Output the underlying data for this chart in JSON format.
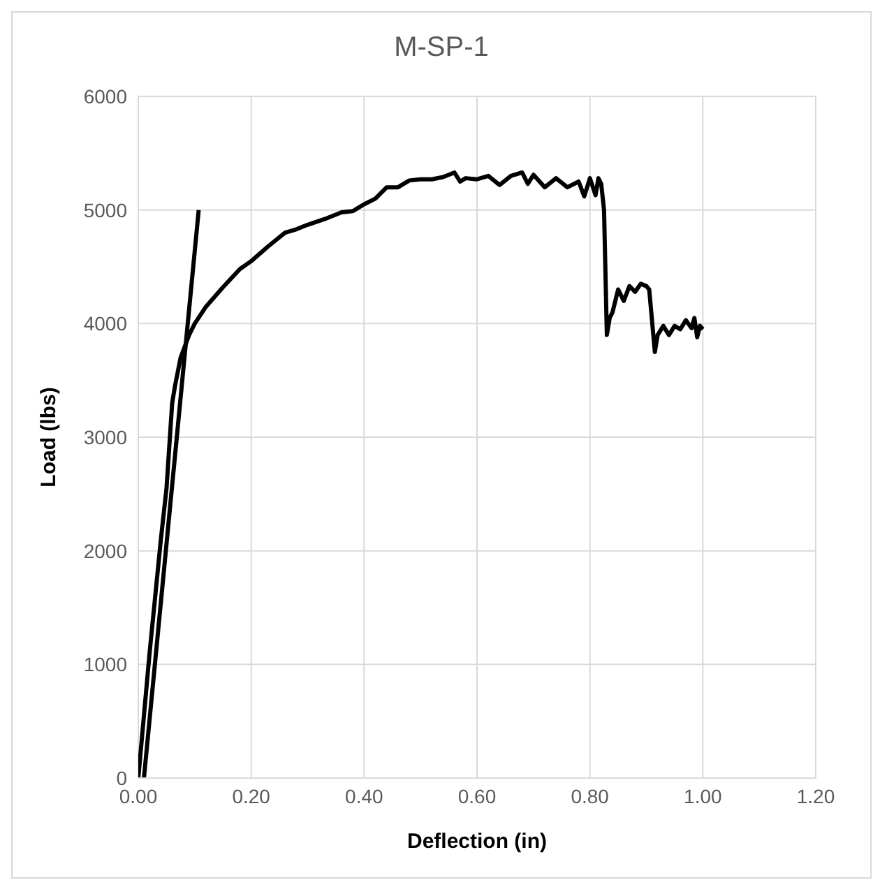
{
  "chart_data": {
    "type": "line",
    "title": "M-SP-1",
    "xlabel": "Deflection (in)",
    "ylabel": "Load (lbs)",
    "xlim": [
      0,
      1.2
    ],
    "xticks": [
      {
        "value": 0,
        "label": "0.00"
      },
      {
        "value": 0.2,
        "label": "0.20"
      },
      {
        "value": 0.4,
        "label": "0.40"
      },
      {
        "value": 0.6,
        "label": "0.60"
      },
      {
        "value": 0.8,
        "label": "0.80"
      },
      {
        "value": 1,
        "label": "1.00"
      },
      {
        "value": 1.2,
        "label": "1.20"
      }
    ],
    "ylim": [
      0,
      6000
    ],
    "yticks": [
      0,
      1000,
      2000,
      3000,
      4000,
      5000,
      6000
    ],
    "grid": true,
    "marker": "none",
    "line_style": "solid",
    "series": [
      {
        "color": "#000000",
        "x": [
          0,
          0.02,
          0.04,
          0.05,
          0.06,
          0.065,
          0.075,
          0.09,
          0.1,
          0.12,
          0.15,
          0.18,
          0.2,
          0.23,
          0.26,
          0.28,
          0.3,
          0.33,
          0.36,
          0.38,
          0.4,
          0.42,
          0.44,
          0.46,
          0.48,
          0.5,
          0.52,
          0.54,
          0.56,
          0.57,
          0.58,
          0.6,
          0.62,
          0.64,
          0.66,
          0.68,
          0.69,
          0.7,
          0.72,
          0.74,
          0.76,
          0.78,
          0.79,
          0.8,
          0.81,
          0.815,
          0.82,
          0.825,
          0.83,
          0.835,
          0.84,
          0.85,
          0.86,
          0.87,
          0.88,
          0.89,
          0.9,
          0.905,
          0.915,
          0.92,
          0.93,
          0.94,
          0.95,
          0.96,
          0.97,
          0.98,
          0.985,
          0.99,
          0.995,
          1.0
        ],
        "values": [
          0,
          1100,
          2100,
          2550,
          3300,
          3450,
          3700,
          3900,
          4000,
          4150,
          4320,
          4480,
          4550,
          4680,
          4800,
          4830,
          4870,
          4920,
          4980,
          4990,
          5050,
          5100,
          5200,
          5200,
          5260,
          5270,
          5270,
          5290,
          5330,
          5250,
          5280,
          5270,
          5300,
          5220,
          5300,
          5330,
          5230,
          5310,
          5200,
          5280,
          5200,
          5250,
          5120,
          5280,
          5130,
          5280,
          5230,
          5000,
          3900,
          4050,
          4100,
          4300,
          4200,
          4330,
          4280,
          4350,
          4330,
          4300,
          3750,
          3900,
          3980,
          3900,
          3980,
          3950,
          4030,
          3960,
          4050,
          3880,
          3980,
          3950
        ]
      },
      {
        "color": "#000000",
        "x": [
          0.01,
          0.107
        ],
        "values": [
          0,
          5000
        ]
      }
    ]
  }
}
